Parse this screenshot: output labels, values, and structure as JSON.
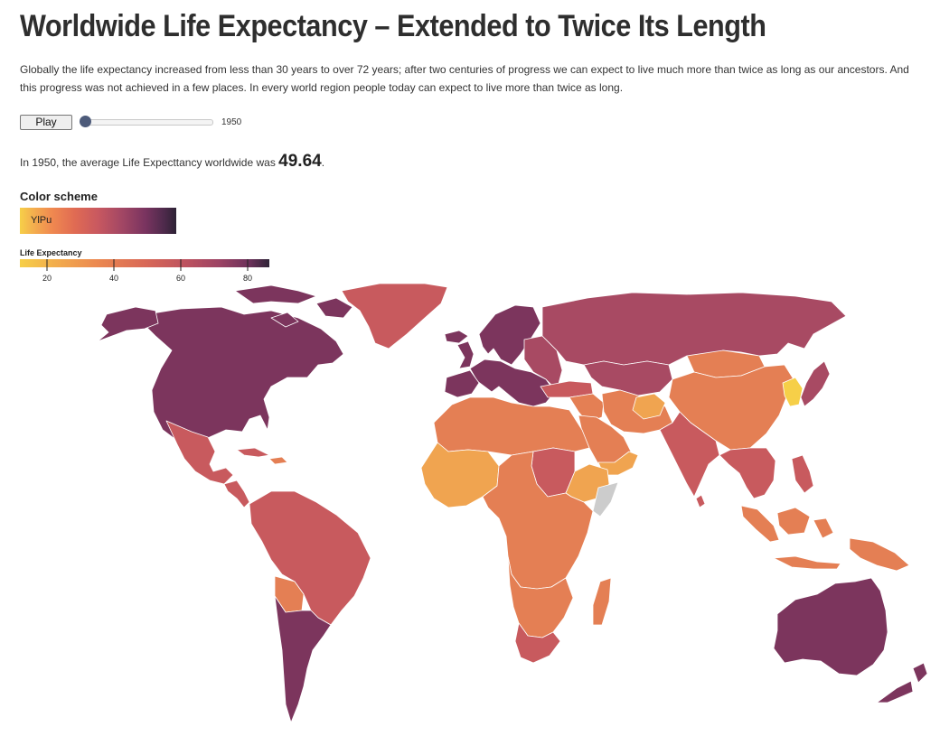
{
  "page": {
    "title": "Worldwide Life Expectancy – Extended to Twice Its Length",
    "intro": "Globally the life expectancy increased from less than 30 years to over 72 years; after two centuries of progress we can expect to live much more than twice as long as our ancestors. And this progress was not achieved in a few places. In every world region people today can expect to live more than twice as long."
  },
  "controls": {
    "play_label": "Play",
    "year": "1950",
    "slider_fraction": 0
  },
  "summary": {
    "prefix": "In 1950, the average Life Expecttancy worldwide was ",
    "value": "49.64",
    "suffix": "."
  },
  "color_scheme": {
    "title": "Color scheme",
    "name": "YlPu"
  },
  "legend": {
    "title": "Life Expectancy",
    "ticks": [
      20,
      40,
      60,
      80
    ],
    "domain": [
      20,
      80
    ]
  },
  "colors": {
    "background": "#ffffff",
    "very_low": "#f6cf48",
    "low": "#f0a450",
    "low_mid": "#e47f54",
    "mid": "#c85a5e",
    "mid_high": "#a84a63",
    "high": "#7c355d",
    "no_data": "#cccccc",
    "border": "#ffffff"
  },
  "map_regions": [
    {
      "name": "north-america",
      "level": "high"
    },
    {
      "name": "canada-islands",
      "level": "high"
    },
    {
      "name": "alaska",
      "level": "high"
    },
    {
      "name": "greenland",
      "level": "mid"
    },
    {
      "name": "mexico",
      "level": "mid"
    },
    {
      "name": "central-america",
      "level": "mid"
    },
    {
      "name": "cuba",
      "level": "mid"
    },
    {
      "name": "hispaniola",
      "level": "low_mid"
    },
    {
      "name": "south-america-north",
      "level": "mid"
    },
    {
      "name": "bolivia",
      "level": "low_mid"
    },
    {
      "name": "southern-cone",
      "level": "high"
    },
    {
      "name": "europe",
      "level": "high"
    },
    {
      "name": "scandinavia",
      "level": "high"
    },
    {
      "name": "iceland",
      "level": "high"
    },
    {
      "name": "united-kingdom",
      "level": "high"
    },
    {
      "name": "iberia",
      "level": "high"
    },
    {
      "name": "eastern-europe",
      "level": "mid_high"
    },
    {
      "name": "russia",
      "level": "mid_high"
    },
    {
      "name": "central-asia",
      "level": "mid_high"
    },
    {
      "name": "turkey",
      "level": "mid"
    },
    {
      "name": "middle-east",
      "level": "low_mid"
    },
    {
      "name": "arabia",
      "level": "low_mid"
    },
    {
      "name": "yemen-oman",
      "level": "low"
    },
    {
      "name": "iran-pakistan",
      "level": "low_mid"
    },
    {
      "name": "afghanistan",
      "level": "low"
    },
    {
      "name": "india",
      "level": "mid"
    },
    {
      "name": "sri-lanka",
      "level": "mid"
    },
    {
      "name": "china",
      "level": "low_mid"
    },
    {
      "name": "mongolia",
      "level": "low_mid"
    },
    {
      "name": "korea",
      "level": "very_low"
    },
    {
      "name": "japan",
      "level": "mid_high"
    },
    {
      "name": "southeast-asia",
      "level": "mid"
    },
    {
      "name": "indonesia",
      "level": "low_mid"
    },
    {
      "name": "philippines",
      "level": "mid"
    },
    {
      "name": "new-guinea",
      "level": "low_mid"
    },
    {
      "name": "north-africa",
      "level": "low_mid"
    },
    {
      "name": "west-africa",
      "level": "low"
    },
    {
      "name": "central-africa",
      "level": "low_mid"
    },
    {
      "name": "sudan",
      "level": "mid"
    },
    {
      "name": "horn-of-africa",
      "level": "low"
    },
    {
      "name": "somalia",
      "level": "no_data"
    },
    {
      "name": "southern-africa",
      "level": "low_mid"
    },
    {
      "name": "south-africa",
      "level": "mid"
    },
    {
      "name": "madagascar",
      "level": "low_mid"
    },
    {
      "name": "australia",
      "level": "high"
    },
    {
      "name": "new-zealand",
      "level": "high"
    }
  ]
}
